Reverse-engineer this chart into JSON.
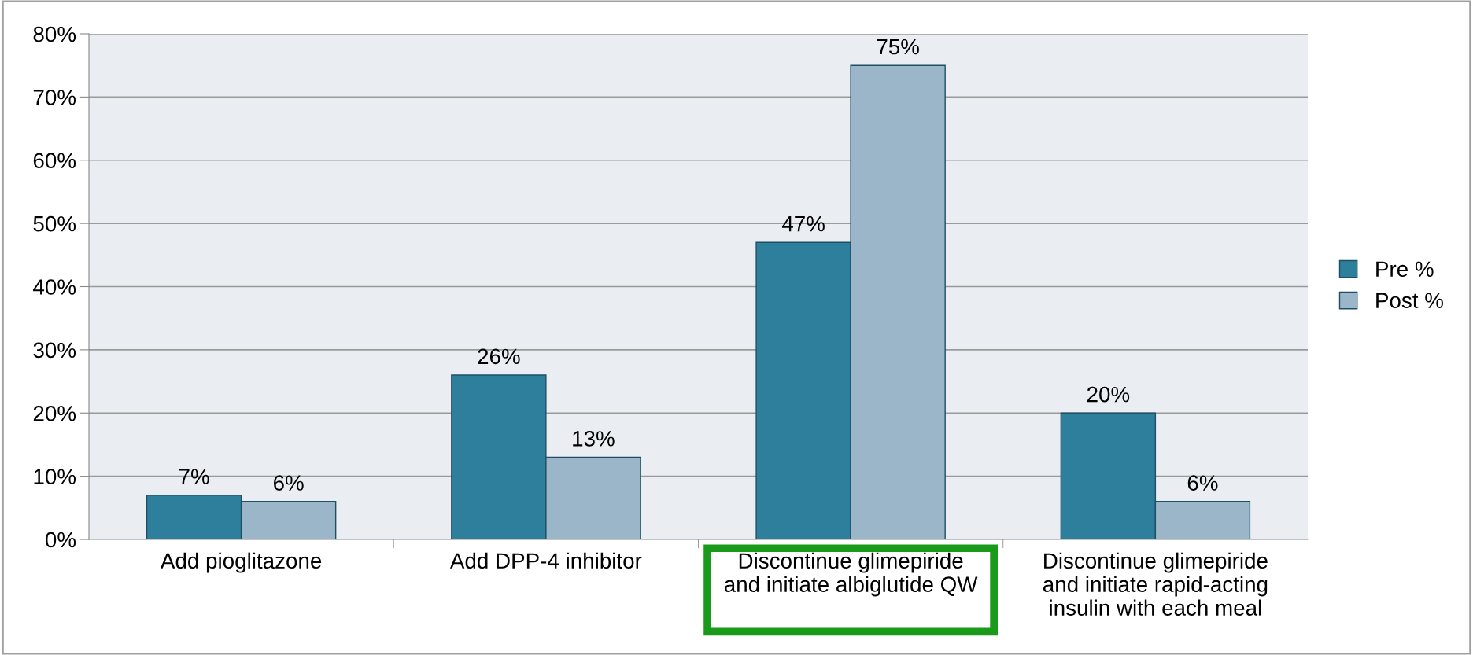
{
  "chart_data": {
    "type": "bar",
    "categories": [
      "Add pioglitazone",
      "Add DPP-4 inhibitor",
      "Discontinue glimepiride\nand initiate albiglutide QW",
      "Discontinue glimepiride\nand initiate rapid-acting\ninsulin with each meal"
    ],
    "series": [
      {
        "name": "Pre %",
        "color": "#2e7f9c",
        "values": [
          7,
          26,
          47,
          20
        ]
      },
      {
        "name": "Post %",
        "color": "#9bb6c8",
        "values": [
          6,
          13,
          75,
          6
        ]
      }
    ],
    "ylim": [
      0,
      80
    ],
    "yticks": [
      {
        "value": 0,
        "label": "0%"
      },
      {
        "value": 10,
        "label": "10%"
      },
      {
        "value": 20,
        "label": "20%"
      },
      {
        "value": 30,
        "label": "30%"
      },
      {
        "value": 40,
        "label": "40%"
      },
      {
        "value": 50,
        "label": "50%"
      },
      {
        "value": 60,
        "label": "60%"
      },
      {
        "value": 70,
        "label": "70%"
      },
      {
        "value": 80,
        "label": "80%"
      }
    ],
    "grid": "y",
    "legend": "right",
    "value_labels": [
      [
        "7%",
        "26%",
        "47%",
        "20%"
      ],
      [
        "6%",
        "13%",
        "75%",
        "6%"
      ]
    ]
  }
}
